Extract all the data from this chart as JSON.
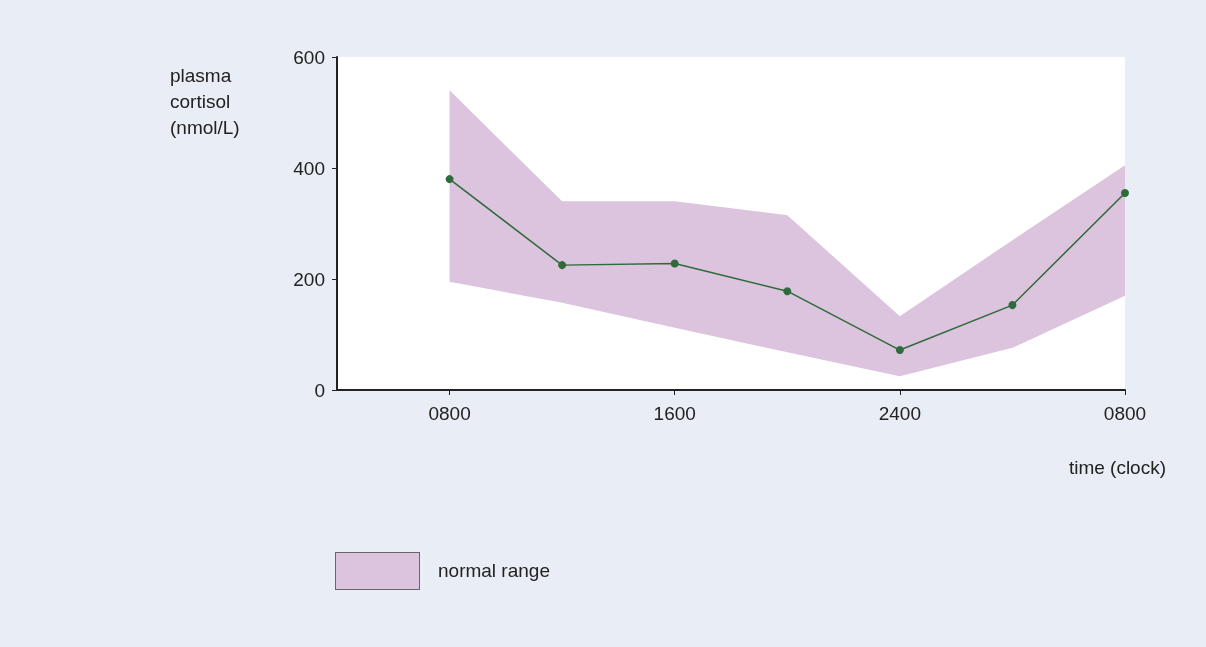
{
  "chart_data": {
    "type": "line",
    "xlabel": "time (clock)",
    "ylabel": "plasma\ncortisol\n(nmol/L)",
    "categories": [
      null,
      "0800",
      null,
      "1600",
      null,
      "2400",
      null,
      "0800"
    ],
    "series": [
      {
        "name": "normal range",
        "color": "#2e6b3a",
        "values": [
          null,
          380,
          225,
          228,
          178,
          72,
          153,
          355
        ],
        "lower": [
          null,
          195,
          157,
          112,
          68,
          25,
          76,
          170
        ],
        "upper": [
          null,
          540,
          340,
          340,
          315,
          133,
          270,
          405
        ]
      }
    ],
    "ylim": [
      0,
      600
    ],
    "yticks": [
      0,
      200,
      400,
      600
    ],
    "grid": false,
    "legend": "bottom left",
    "marker": "circle",
    "line_style": "solid"
  }
}
